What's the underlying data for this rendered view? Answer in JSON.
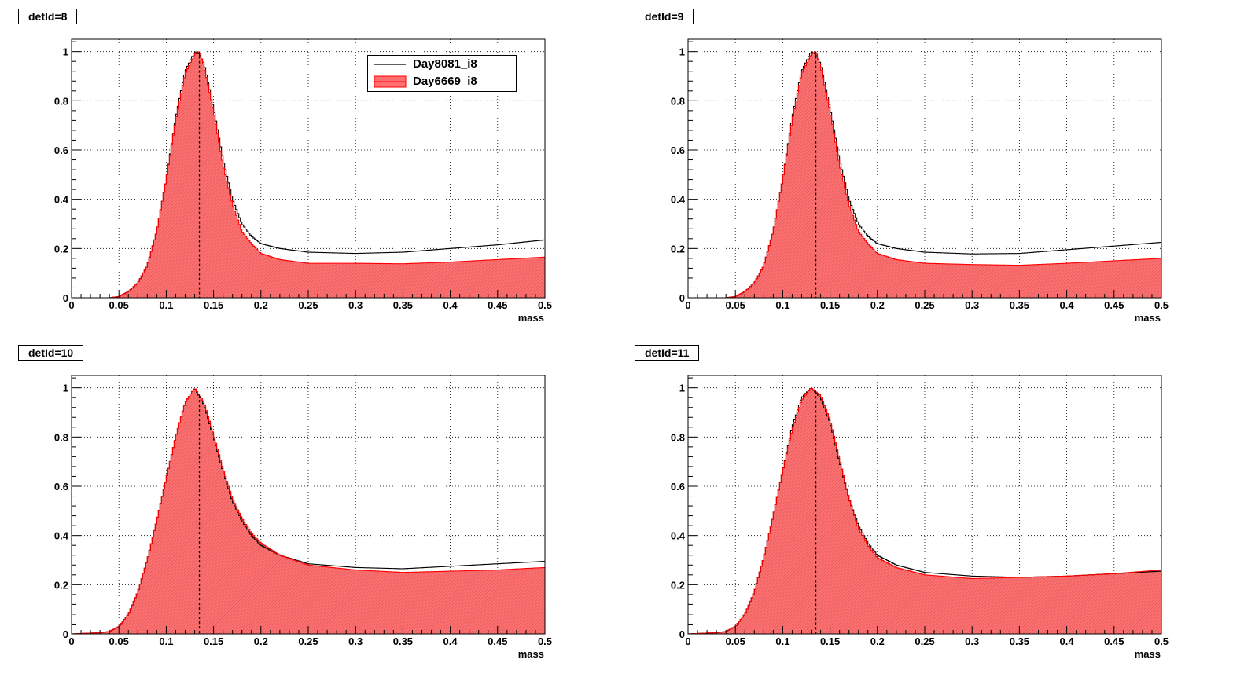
{
  "colors": {
    "frame": "#000000",
    "grid": "#000000",
    "reference_line": "#000000",
    "filled_line": "#ff0000",
    "filled_fill": "#ff6f6f",
    "hatch": "#000000"
  },
  "legend": {
    "entries": [
      {
        "label": "Day8081_i8",
        "style": "line",
        "color": "#000000"
      },
      {
        "label": "Day6669_i8",
        "style": "fill",
        "color": "#ff0000"
      }
    ]
  },
  "chart_data": [
    {
      "type": "area",
      "title": "detId=8",
      "xlabel": "mass",
      "ylabel": "",
      "xlim": [
        0,
        0.5
      ],
      "ylim": [
        0,
        1.05
      ],
      "grid": true,
      "legend_placement": "top-right",
      "x_ticks": [
        "0",
        "0.05",
        "0.1",
        "0.15",
        "0.2",
        "0.25",
        "0.3",
        "0.35",
        "0.4",
        "0.45",
        "0.5"
      ],
      "y_ticks": [
        "0",
        "0.2",
        "0.4",
        "0.6",
        "0.8",
        "1"
      ],
      "vline_x": 0.135,
      "x": [
        0,
        0.04,
        0.05,
        0.06,
        0.07,
        0.08,
        0.09,
        0.1,
        0.11,
        0.12,
        0.13,
        0.135,
        0.14,
        0.15,
        0.16,
        0.17,
        0.18,
        0.19,
        0.2,
        0.22,
        0.25,
        0.3,
        0.35,
        0.4,
        0.45,
        0.5
      ],
      "series": [
        {
          "name": "Day8081_i8",
          "style": "line",
          "values": [
            0,
            0,
            0.005,
            0.025,
            0.06,
            0.13,
            0.27,
            0.48,
            0.73,
            0.92,
            1.0,
            0.99,
            0.95,
            0.77,
            0.56,
            0.4,
            0.3,
            0.25,
            0.22,
            0.2,
            0.185,
            0.18,
            0.185,
            0.2,
            0.215,
            0.235
          ]
        },
        {
          "name": "Day6669_i8",
          "style": "fill",
          "values": [
            0,
            0,
            0.005,
            0.025,
            0.06,
            0.13,
            0.27,
            0.48,
            0.72,
            0.91,
            0.99,
            1.0,
            0.94,
            0.76,
            0.54,
            0.38,
            0.27,
            0.22,
            0.18,
            0.155,
            0.14,
            0.14,
            0.138,
            0.145,
            0.155,
            0.165
          ]
        }
      ]
    },
    {
      "type": "area",
      "title": "detId=9",
      "xlabel": "mass",
      "ylabel": "",
      "xlim": [
        0,
        0.5
      ],
      "ylim": [
        0,
        1.05
      ],
      "grid": true,
      "x_ticks": [
        "0",
        "0.05",
        "0.1",
        "0.15",
        "0.2",
        "0.25",
        "0.3",
        "0.35",
        "0.4",
        "0.45",
        "0.5"
      ],
      "y_ticks": [
        "0",
        "0.2",
        "0.4",
        "0.6",
        "0.8",
        "1"
      ],
      "vline_x": 0.135,
      "x": [
        0,
        0.04,
        0.05,
        0.06,
        0.07,
        0.08,
        0.09,
        0.1,
        0.11,
        0.12,
        0.13,
        0.135,
        0.14,
        0.15,
        0.16,
        0.17,
        0.18,
        0.19,
        0.2,
        0.22,
        0.25,
        0.3,
        0.35,
        0.4,
        0.45,
        0.5
      ],
      "series": [
        {
          "name": "Day8081_i8",
          "style": "line",
          "values": [
            0,
            0,
            0.005,
            0.025,
            0.06,
            0.13,
            0.27,
            0.48,
            0.73,
            0.92,
            1.0,
            0.99,
            0.95,
            0.77,
            0.56,
            0.4,
            0.3,
            0.25,
            0.22,
            0.2,
            0.185,
            0.178,
            0.18,
            0.195,
            0.21,
            0.225
          ]
        },
        {
          "name": "Day6669_i8",
          "style": "fill",
          "values": [
            0,
            0,
            0.005,
            0.025,
            0.06,
            0.13,
            0.27,
            0.48,
            0.72,
            0.91,
            0.99,
            1.0,
            0.94,
            0.76,
            0.54,
            0.38,
            0.27,
            0.22,
            0.18,
            0.155,
            0.14,
            0.135,
            0.132,
            0.14,
            0.15,
            0.16
          ]
        }
      ]
    },
    {
      "type": "area",
      "title": "detId=10",
      "xlabel": "mass",
      "ylabel": "",
      "xlim": [
        0,
        0.5
      ],
      "ylim": [
        0,
        1.05
      ],
      "grid": true,
      "x_ticks": [
        "0",
        "0.05",
        "0.1",
        "0.15",
        "0.2",
        "0.25",
        "0.3",
        "0.35",
        "0.4",
        "0.45",
        "0.5"
      ],
      "y_ticks": [
        "0",
        "0.2",
        "0.4",
        "0.6",
        "0.8",
        "1"
      ],
      "vline_x": 0.135,
      "x": [
        0,
        0.03,
        0.04,
        0.05,
        0.06,
        0.07,
        0.08,
        0.09,
        0.1,
        0.11,
        0.12,
        0.13,
        0.14,
        0.15,
        0.16,
        0.17,
        0.18,
        0.19,
        0.2,
        0.22,
        0.25,
        0.3,
        0.35,
        0.4,
        0.45,
        0.5
      ],
      "series": [
        {
          "name": "Day8081_i8",
          "style": "line",
          "values": [
            0,
            0.005,
            0.01,
            0.03,
            0.08,
            0.17,
            0.3,
            0.46,
            0.63,
            0.8,
            0.94,
            1.0,
            0.93,
            0.8,
            0.66,
            0.54,
            0.46,
            0.4,
            0.36,
            0.32,
            0.285,
            0.27,
            0.265,
            0.275,
            0.285,
            0.295
          ]
        },
        {
          "name": "Day6669_i8",
          "style": "fill",
          "values": [
            0,
            0.005,
            0.01,
            0.03,
            0.08,
            0.17,
            0.3,
            0.46,
            0.63,
            0.8,
            0.94,
            1.0,
            0.94,
            0.81,
            0.67,
            0.55,
            0.47,
            0.41,
            0.37,
            0.32,
            0.28,
            0.26,
            0.25,
            0.255,
            0.26,
            0.27
          ]
        }
      ]
    },
    {
      "type": "area",
      "title": "detId=11",
      "xlabel": "mass",
      "ylabel": "",
      "xlim": [
        0,
        0.5
      ],
      "ylim": [
        0,
        1.05
      ],
      "grid": true,
      "x_ticks": [
        "0",
        "0.05",
        "0.1",
        "0.15",
        "0.2",
        "0.25",
        "0.3",
        "0.35",
        "0.4",
        "0.45",
        "0.5"
      ],
      "y_ticks": [
        "0",
        "0.2",
        "0.4",
        "0.6",
        "0.8",
        "1"
      ],
      "vline_x": 0.135,
      "x": [
        0,
        0.03,
        0.04,
        0.05,
        0.06,
        0.07,
        0.08,
        0.09,
        0.1,
        0.11,
        0.12,
        0.13,
        0.14,
        0.15,
        0.16,
        0.17,
        0.18,
        0.19,
        0.2,
        0.22,
        0.25,
        0.3,
        0.35,
        0.4,
        0.45,
        0.5
      ],
      "series": [
        {
          "name": "Day8081_i8",
          "style": "line",
          "values": [
            0,
            0.005,
            0.01,
            0.03,
            0.08,
            0.17,
            0.31,
            0.48,
            0.66,
            0.84,
            0.96,
            1.0,
            0.96,
            0.86,
            0.7,
            0.55,
            0.44,
            0.37,
            0.32,
            0.28,
            0.25,
            0.235,
            0.23,
            0.235,
            0.245,
            0.255
          ]
        },
        {
          "name": "Day6669_i8",
          "style": "fill",
          "values": [
            0,
            0.005,
            0.01,
            0.03,
            0.08,
            0.17,
            0.31,
            0.48,
            0.66,
            0.83,
            0.95,
            1.0,
            0.97,
            0.87,
            0.71,
            0.55,
            0.43,
            0.36,
            0.31,
            0.27,
            0.24,
            0.225,
            0.23,
            0.235,
            0.245,
            0.26
          ]
        }
      ]
    }
  ]
}
